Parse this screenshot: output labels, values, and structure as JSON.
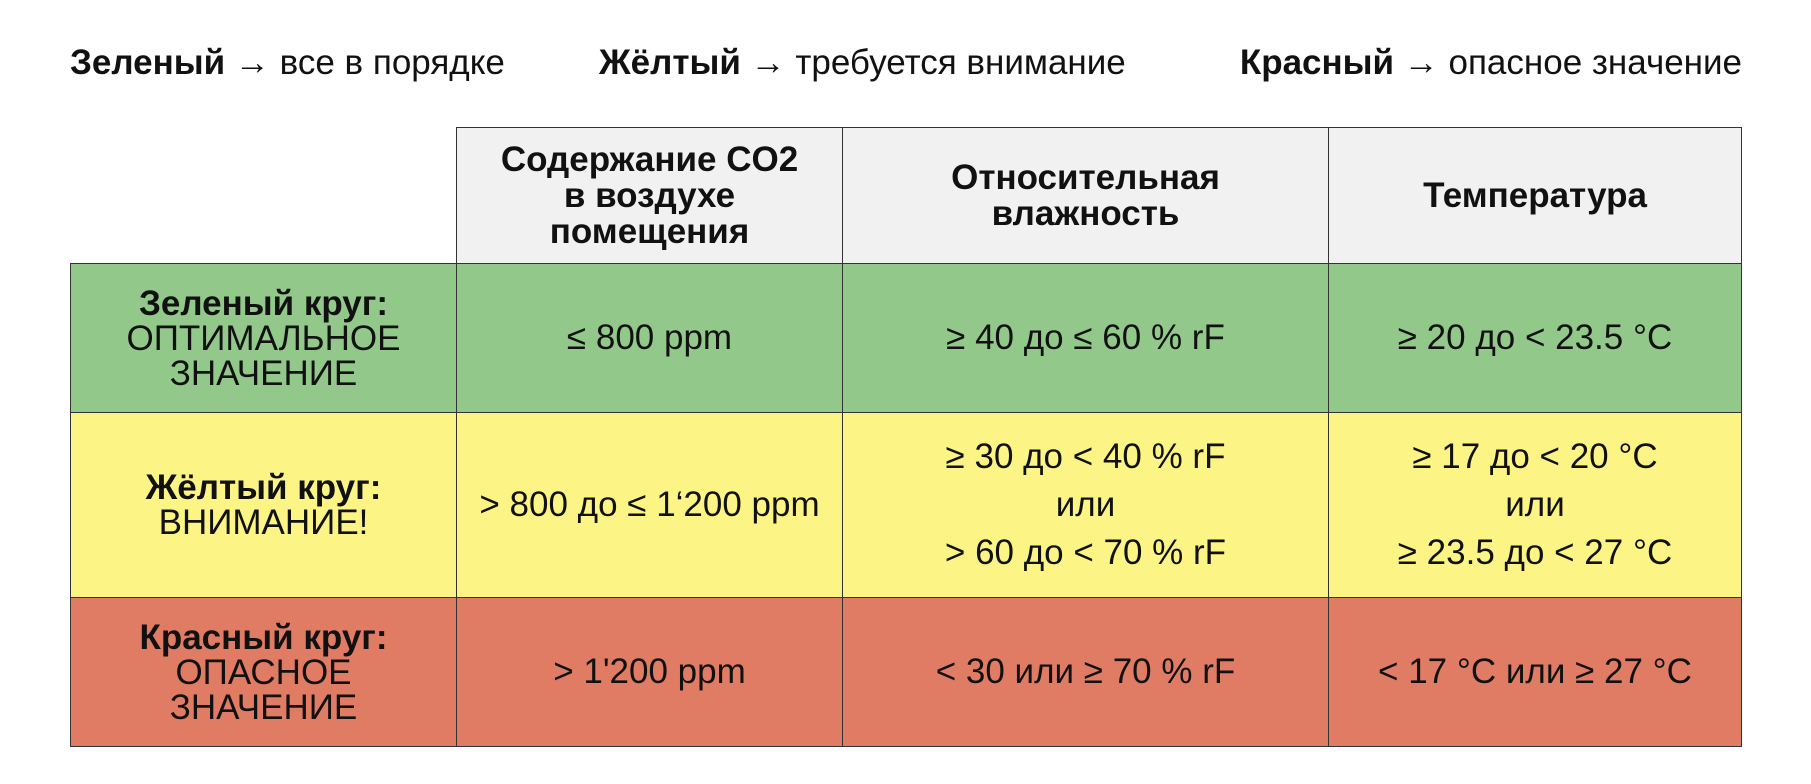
{
  "legend": [
    {
      "color_name": "Зеленый",
      "arrow": "→",
      "meaning": "все в порядке"
    },
    {
      "color_name": "Жёлтый",
      "arrow": "→",
      "meaning": "требуется внимание"
    },
    {
      "color_name": "Красный",
      "arrow": "→",
      "meaning": "опасное значение"
    }
  ],
  "table": {
    "columns": [
      {
        "lines": [
          "Содержание CO2",
          "в воздухе",
          "помещения"
        ]
      },
      {
        "lines": [
          "Относительная",
          "влажность"
        ]
      },
      {
        "lines": [
          "Температура"
        ]
      }
    ],
    "rows": [
      {
        "color": "#93c88b",
        "title": "Зеленый круг:",
        "subtitle_lines": [
          "ОПТИМАЛЬНОЕ",
          "ЗНАЧЕНИЕ"
        ],
        "co2": [
          "≤ 800 ppm"
        ],
        "humidity": [
          "≥ 40 до ≤ 60 % rF"
        ],
        "temperature": [
          "≥ 20 до < 23.5 °C"
        ]
      },
      {
        "color": "#fcf585",
        "title": "Жёлтый круг:",
        "subtitle_lines": [
          "ВНИМАНИЕ!"
        ],
        "co2": [
          "> 800 до ≤ 1‘200 ppm"
        ],
        "humidity": [
          "≥ 30 до < 40 % rF",
          "или",
          "> 60 до < 70 % rF"
        ],
        "temperature": [
          "≥ 17 до < 20 °C",
          "или",
          "≥ 23.5 до < 27 °C"
        ]
      },
      {
        "color": "#e07c64",
        "title": "Красный круг:",
        "subtitle_lines": [
          "ОПАСНОЕ",
          "ЗНАЧЕНИЕ"
        ],
        "co2": [
          "> 1'200 ppm"
        ],
        "humidity": [
          "< 30 или ≥ 70 % rF"
        ],
        "temperature": [
          "< 17 °C или ≥ 27 °C"
        ]
      }
    ]
  }
}
